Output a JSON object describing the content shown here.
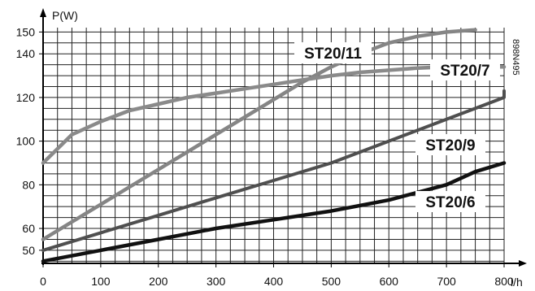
{
  "chart_data": {
    "type": "line",
    "ylabel": "P(W)",
    "xlabel": "l/h",
    "x_ticks": [
      0,
      100,
      200,
      300,
      400,
      500,
      600,
      700,
      800
    ],
    "y_ticks": [
      50,
      60,
      80,
      100,
      120,
      140,
      150
    ],
    "xlim": [
      0,
      800
    ],
    "ylim": [
      44,
      152
    ],
    "grid": true,
    "reference_code": "898N495",
    "series": [
      {
        "name": "ST20/11",
        "color": "#858585",
        "points": [
          [
            0,
            55
          ],
          [
            50,
            63
          ],
          [
            100,
            71
          ],
          [
            150,
            79
          ],
          [
            200,
            87
          ],
          [
            250,
            95
          ],
          [
            300,
            103
          ],
          [
            350,
            111
          ],
          [
            400,
            119
          ],
          [
            450,
            127
          ],
          [
            500,
            134
          ],
          [
            550,
            140
          ],
          [
            600,
            145
          ],
          [
            650,
            148
          ],
          [
            700,
            150
          ],
          [
            750,
            151
          ]
        ]
      },
      {
        "name": "ST20/7",
        "color": "#8a8a8a",
        "points": [
          [
            0,
            90
          ],
          [
            50,
            103
          ],
          [
            100,
            109
          ],
          [
            150,
            114
          ],
          [
            200,
            117
          ],
          [
            250,
            120
          ],
          [
            300,
            122
          ],
          [
            350,
            124
          ],
          [
            400,
            126
          ],
          [
            450,
            128
          ],
          [
            500,
            130
          ],
          [
            550,
            131.5
          ],
          [
            600,
            132.5
          ],
          [
            650,
            133.5
          ],
          [
            700,
            134
          ],
          [
            800,
            134
          ]
        ]
      },
      {
        "name": "ST20/9",
        "color": "#4f4f4f",
        "points": [
          [
            0,
            50
          ],
          [
            100,
            58
          ],
          [
            200,
            66
          ],
          [
            300,
            74
          ],
          [
            400,
            82
          ],
          [
            500,
            90
          ],
          [
            600,
            100
          ],
          [
            700,
            110
          ],
          [
            800,
            120
          ],
          [
            800,
            123
          ]
        ]
      },
      {
        "name": "ST20/6",
        "color": "#111111",
        "points": [
          [
            0,
            45
          ],
          [
            100,
            50
          ],
          [
            200,
            55
          ],
          [
            300,
            60
          ],
          [
            400,
            64
          ],
          [
            500,
            68
          ],
          [
            600,
            73
          ],
          [
            700,
            80
          ],
          [
            750,
            86
          ],
          [
            800,
            90
          ]
        ]
      }
    ]
  }
}
